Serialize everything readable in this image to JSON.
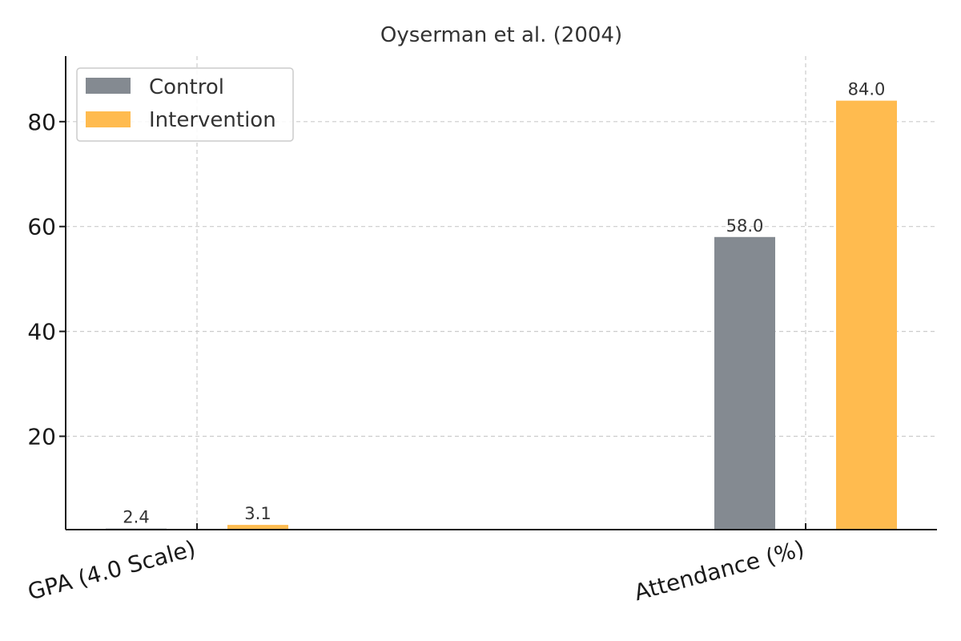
{
  "chart_data": {
    "type": "bar",
    "title": "Oyserman et al. (2004)",
    "categories": [
      "GPA (4.0 Scale)",
      "Attendance (%)"
    ],
    "series": [
      {
        "name": "Control",
        "values": [
          2.4,
          58.0
        ],
        "labels": [
          "2.4",
          "58.0"
        ],
        "color": "#848a91"
      },
      {
        "name": "Intervention",
        "values": [
          3.1,
          84.0
        ],
        "labels": [
          "3.1",
          "84.0"
        ],
        "color": "#ffbb4f"
      }
    ],
    "xlabel": "",
    "ylabel": "",
    "ylim": [
      2.2,
      92.5
    ],
    "yticks": [
      20,
      40,
      60,
      80
    ],
    "ytick_labels": [
      "20",
      "40",
      "60",
      "80"
    ],
    "grid": true,
    "legend_position": "top-left"
  }
}
